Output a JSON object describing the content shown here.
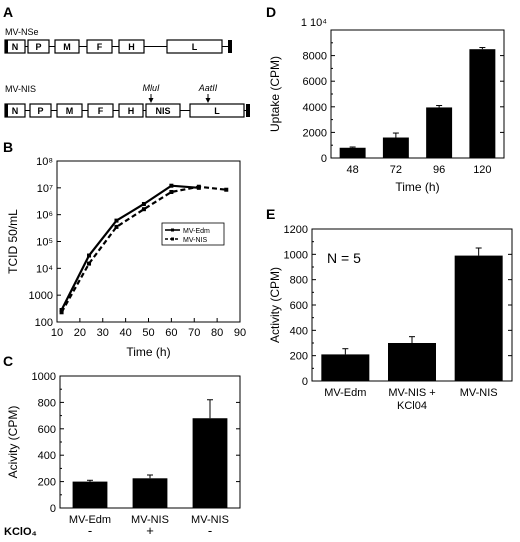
{
  "panels": {
    "A": {
      "letter": "A",
      "construct1": {
        "label": "MV-NSe",
        "genes": [
          "N",
          "P",
          "M",
          "F",
          "H",
          "L"
        ]
      },
      "construct2": {
        "label": "MV-NIS",
        "genes": [
          "N",
          "P",
          "M",
          "F",
          "H",
          "NIS",
          "L"
        ],
        "site1": "MluI",
        "site2": "AatII"
      }
    },
    "B": {
      "letter": "B"
    },
    "C": {
      "letter": "C"
    },
    "D": {
      "letter": "D"
    },
    "E": {
      "letter": "E"
    }
  },
  "chart_data": [
    {
      "id": "B",
      "type": "line",
      "xlabel": "Time (h)",
      "ylabel": "TCID 50/mL",
      "xlim": [
        10,
        90
      ],
      "ylim": [
        100,
        100000000
      ],
      "yscale": "log",
      "xticks": [
        "10",
        "20",
        "30",
        "40",
        "50",
        "60",
        "70",
        "80",
        "90"
      ],
      "yticks": [
        "100",
        "1000",
        "10⁴",
        "10⁵",
        "10⁶",
        "10⁷",
        "10⁸"
      ],
      "legend_position": "right",
      "series": [
        {
          "name": "MV-Edm",
          "style": "solid",
          "x": [
            12,
            24,
            36,
            48,
            60,
            72
          ],
          "y": [
            280,
            30000,
            600000,
            2500000,
            12000000,
            10000000
          ]
        },
        {
          "name": "MV-NIS",
          "style": "dashed",
          "x": [
            12,
            24,
            36,
            48,
            60,
            72,
            84
          ],
          "y": [
            230,
            15000,
            350000,
            1600000,
            7000000,
            11000000,
            8500000
          ]
        }
      ]
    },
    {
      "id": "C",
      "type": "bar",
      "ylabel": "Acivity (CPM)",
      "ylim": [
        0,
        1000
      ],
      "yticks": [
        "0",
        "200",
        "400",
        "600",
        "800",
        "1000"
      ],
      "categories": [
        "MV-Edm",
        "MV-NIS",
        "MV-NIS"
      ],
      "values": [
        200,
        225,
        680
      ],
      "errors": [
        10,
        25,
        140
      ],
      "row_label": "KClO₄",
      "row_values": [
        "-",
        "+",
        "-"
      ]
    },
    {
      "id": "D",
      "type": "bar",
      "xlabel": "Time (h)",
      "ylabel": "Uptake (CPM)",
      "ylim": [
        0,
        10000
      ],
      "ytick_labels": [
        "0",
        "2000",
        "4000",
        "6000",
        "8000",
        "1 10⁴"
      ],
      "categories": [
        "48",
        "72",
        "96",
        "120"
      ],
      "values": [
        800,
        1600,
        3950,
        8500
      ],
      "errors": [
        60,
        350,
        150,
        130
      ]
    },
    {
      "id": "E",
      "type": "bar",
      "ylabel": "Activity (CPM)",
      "ylim": [
        0,
        1200
      ],
      "yticks": [
        "0",
        "200",
        "400",
        "600",
        "800",
        "1000",
        "1200"
      ],
      "categories": [
        "MV-Edm",
        "MV-NIS +\nKCl04",
        "MV-NIS"
      ],
      "values": [
        210,
        300,
        990
      ],
      "errors": [
        45,
        50,
        60
      ],
      "annotation": "N = 5"
    }
  ]
}
